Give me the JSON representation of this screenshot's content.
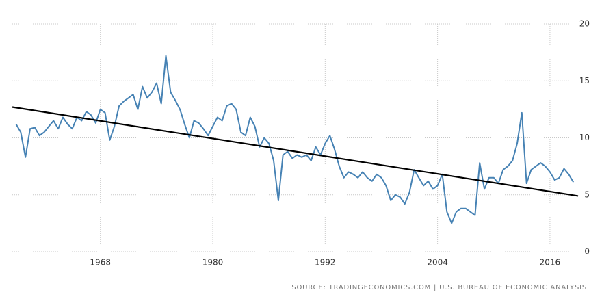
{
  "chart_data": {
    "type": "line",
    "source": "SOURCE: TRADINGECONOMICS.COM | U.S. BUREAU OF ECONOMIC ANALYSIS",
    "xlim": [
      1958.6,
      2019.0
    ],
    "xticks": [
      1968,
      1980,
      1992,
      2004,
      2016
    ],
    "ylim": [
      0,
      20
    ],
    "yticks": [
      0,
      5,
      10,
      15,
      20
    ],
    "grid": true,
    "series": [
      {
        "color": "#4682b4",
        "x": [
          1959,
          1959.5,
          1960,
          1960.5,
          1961,
          1961.5,
          1962,
          1962.5,
          1963,
          1963.5,
          1964,
          1964.5,
          1965,
          1965.5,
          1966,
          1966.5,
          1967,
          1967.5,
          1968,
          1968.5,
          1969,
          1969.5,
          1970,
          1970.5,
          1971,
          1971.5,
          1972,
          1972.5,
          1973,
          1973.5,
          1974,
          1974.5,
          1975,
          1975.5,
          1976,
          1976.5,
          1977,
          1977.5,
          1978,
          1978.5,
          1979,
          1979.5,
          1980,
          1980.5,
          1981,
          1981.5,
          1982,
          1982.5,
          1983,
          1983.5,
          1984,
          1984.5,
          1985,
          1985.5,
          1986,
          1986.5,
          1987,
          1987.5,
          1988,
          1988.5,
          1989,
          1989.5,
          1990,
          1990.5,
          1991,
          1991.5,
          1992,
          1992.5,
          1993,
          1993.5,
          1994,
          1994.5,
          1995,
          1995.5,
          1996,
          1996.5,
          1997,
          1997.5,
          1998,
          1998.5,
          1999,
          1999.5,
          2000,
          2000.5,
          2001,
          2001.5,
          2002,
          2002.5,
          2003,
          2003.5,
          2004,
          2004.5,
          2005,
          2005.5,
          2006,
          2006.5,
          2007,
          2007.5,
          2008,
          2008.5,
          2009,
          2009.5,
          2010,
          2010.5,
          2011,
          2011.5,
          2012,
          2012.5,
          2013,
          2013.5,
          2014,
          2014.5,
          2015,
          2015.5,
          2016,
          2016.5,
          2017,
          2017.5,
          2018,
          2018.5
        ],
        "values": [
          11.2,
          10.5,
          8.3,
          10.8,
          10.9,
          10.2,
          10.5,
          11.0,
          11.5,
          10.8,
          11.8,
          11.2,
          10.8,
          11.8,
          11.5,
          12.3,
          12.0,
          11.3,
          12.5,
          12.2,
          9.8,
          11.0,
          12.8,
          13.2,
          13.5,
          13.8,
          12.5,
          14.5,
          13.5,
          14.0,
          14.8,
          13.0,
          17.2,
          14.0,
          13.3,
          12.5,
          11.2,
          10.0,
          11.5,
          11.3,
          10.8,
          10.2,
          11.0,
          11.8,
          11.5,
          12.8,
          13.0,
          12.5,
          10.5,
          10.2,
          11.8,
          11.0,
          9.2,
          10.0,
          9.5,
          8.0,
          4.5,
          8.5,
          8.8,
          8.2,
          8.5,
          8.3,
          8.5,
          8.0,
          9.2,
          8.5,
          9.5,
          10.2,
          9.0,
          7.5,
          6.5,
          7.0,
          6.8,
          6.5,
          7.0,
          6.5,
          6.2,
          6.8,
          6.5,
          5.8,
          4.5,
          5.0,
          4.8,
          4.2,
          5.2,
          7.2,
          6.5,
          5.8,
          6.2,
          5.5,
          5.8,
          6.8,
          3.5,
          2.5,
          3.5,
          3.8,
          3.8,
          3.5,
          3.2,
          7.8,
          5.5,
          6.5,
          6.5,
          6.0,
          7.2,
          7.5,
          8.0,
          9.5,
          12.2,
          6.0,
          7.2,
          7.5,
          7.8,
          7.5,
          7.0,
          6.3,
          6.5,
          7.3,
          6.8,
          6.1
        ]
      },
      {
        "color": "#000000",
        "x": [
          1958.6,
          2019.0
        ],
        "values": [
          12.7,
          4.9
        ]
      }
    ]
  }
}
